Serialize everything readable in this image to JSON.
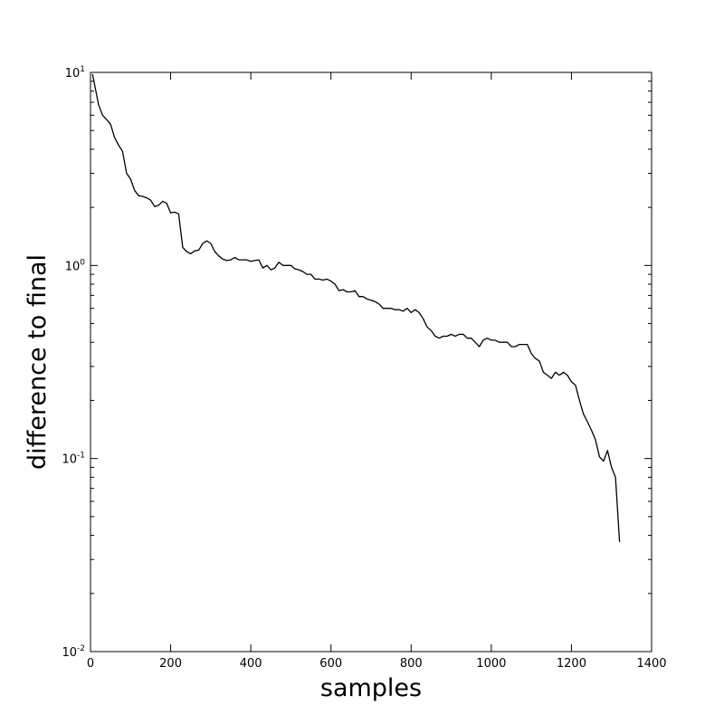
{
  "chart_data": {
    "type": "line",
    "title": "",
    "xlabel": "samples",
    "ylabel": "difference to final",
    "xscale": "linear",
    "yscale": "log",
    "xlim": [
      0,
      1400
    ],
    "ylim": [
      0.01,
      10
    ],
    "grid": false,
    "x_ticks": [
      0,
      200,
      400,
      600,
      800,
      1000,
      1200,
      1400
    ],
    "x_tick_labels": [
      "0",
      "200",
      "400",
      "600",
      "800",
      "1000",
      "1200",
      "1400"
    ],
    "y_ticks": [
      {
        "value": 10,
        "base": "10",
        "exp": "1"
      },
      {
        "value": 1,
        "base": "10",
        "exp": "0"
      },
      {
        "value": 0.1,
        "base": "10",
        "exp": "-1"
      },
      {
        "value": 0.01,
        "base": "10",
        "exp": "-2"
      }
    ],
    "series": [
      {
        "color": "#000000",
        "x": [
          5,
          10,
          20,
          30,
          40,
          50,
          60,
          70,
          80,
          90,
          100,
          110,
          120,
          130,
          140,
          150,
          160,
          170,
          180,
          190,
          200,
          210,
          220,
          230,
          240,
          250,
          260,
          270,
          280,
          290,
          300,
          310,
          320,
          330,
          340,
          350,
          360,
          370,
          380,
          390,
          400,
          410,
          420,
          430,
          440,
          450,
          460,
          470,
          480,
          490,
          500,
          510,
          520,
          530,
          540,
          550,
          560,
          570,
          580,
          590,
          600,
          610,
          620,
          630,
          640,
          650,
          660,
          670,
          680,
          690,
          700,
          710,
          720,
          730,
          740,
          750,
          760,
          770,
          780,
          790,
          800,
          810,
          820,
          830,
          840,
          850,
          860,
          870,
          880,
          890,
          900,
          910,
          920,
          930,
          940,
          950,
          960,
          970,
          980,
          990,
          1000,
          1010,
          1020,
          1030,
          1040,
          1050,
          1060,
          1070,
          1080,
          1090,
          1100,
          1110,
          1120,
          1130,
          1140,
          1150,
          1160,
          1170,
          1180,
          1190,
          1200,
          1210,
          1220,
          1230,
          1240,
          1250,
          1260,
          1270,
          1280,
          1290,
          1300,
          1310,
          1320
        ],
        "y": [
          9.8,
          8.7,
          6.8,
          6.0,
          5.7,
          5.4,
          4.6,
          4.2,
          3.9,
          3.0,
          2.8,
          2.45,
          2.3,
          2.28,
          2.24,
          2.18,
          2.02,
          2.05,
          2.15,
          2.1,
          1.87,
          1.89,
          1.85,
          1.24,
          1.18,
          1.15,
          1.19,
          1.2,
          1.3,
          1.34,
          1.3,
          1.18,
          1.12,
          1.08,
          1.06,
          1.07,
          1.1,
          1.07,
          1.07,
          1.07,
          1.05,
          1.06,
          1.07,
          0.97,
          1.0,
          0.95,
          0.97,
          1.04,
          1.0,
          1.0,
          1.0,
          0.96,
          0.95,
          0.93,
          0.9,
          0.9,
          0.85,
          0.85,
          0.84,
          0.85,
          0.83,
          0.8,
          0.74,
          0.75,
          0.73,
          0.73,
          0.74,
          0.69,
          0.69,
          0.67,
          0.66,
          0.65,
          0.63,
          0.6,
          0.6,
          0.6,
          0.59,
          0.59,
          0.58,
          0.6,
          0.57,
          0.59,
          0.57,
          0.53,
          0.48,
          0.46,
          0.43,
          0.42,
          0.43,
          0.43,
          0.44,
          0.43,
          0.44,
          0.44,
          0.42,
          0.42,
          0.4,
          0.38,
          0.41,
          0.42,
          0.41,
          0.41,
          0.4,
          0.4,
          0.4,
          0.38,
          0.38,
          0.39,
          0.39,
          0.39,
          0.35,
          0.33,
          0.32,
          0.28,
          0.27,
          0.26,
          0.28,
          0.27,
          0.28,
          0.27,
          0.25,
          0.24,
          0.2,
          0.17,
          0.155,
          0.14,
          0.125,
          0.102,
          0.097,
          0.11,
          0.09,
          0.08,
          0.037
        ]
      }
    ]
  }
}
